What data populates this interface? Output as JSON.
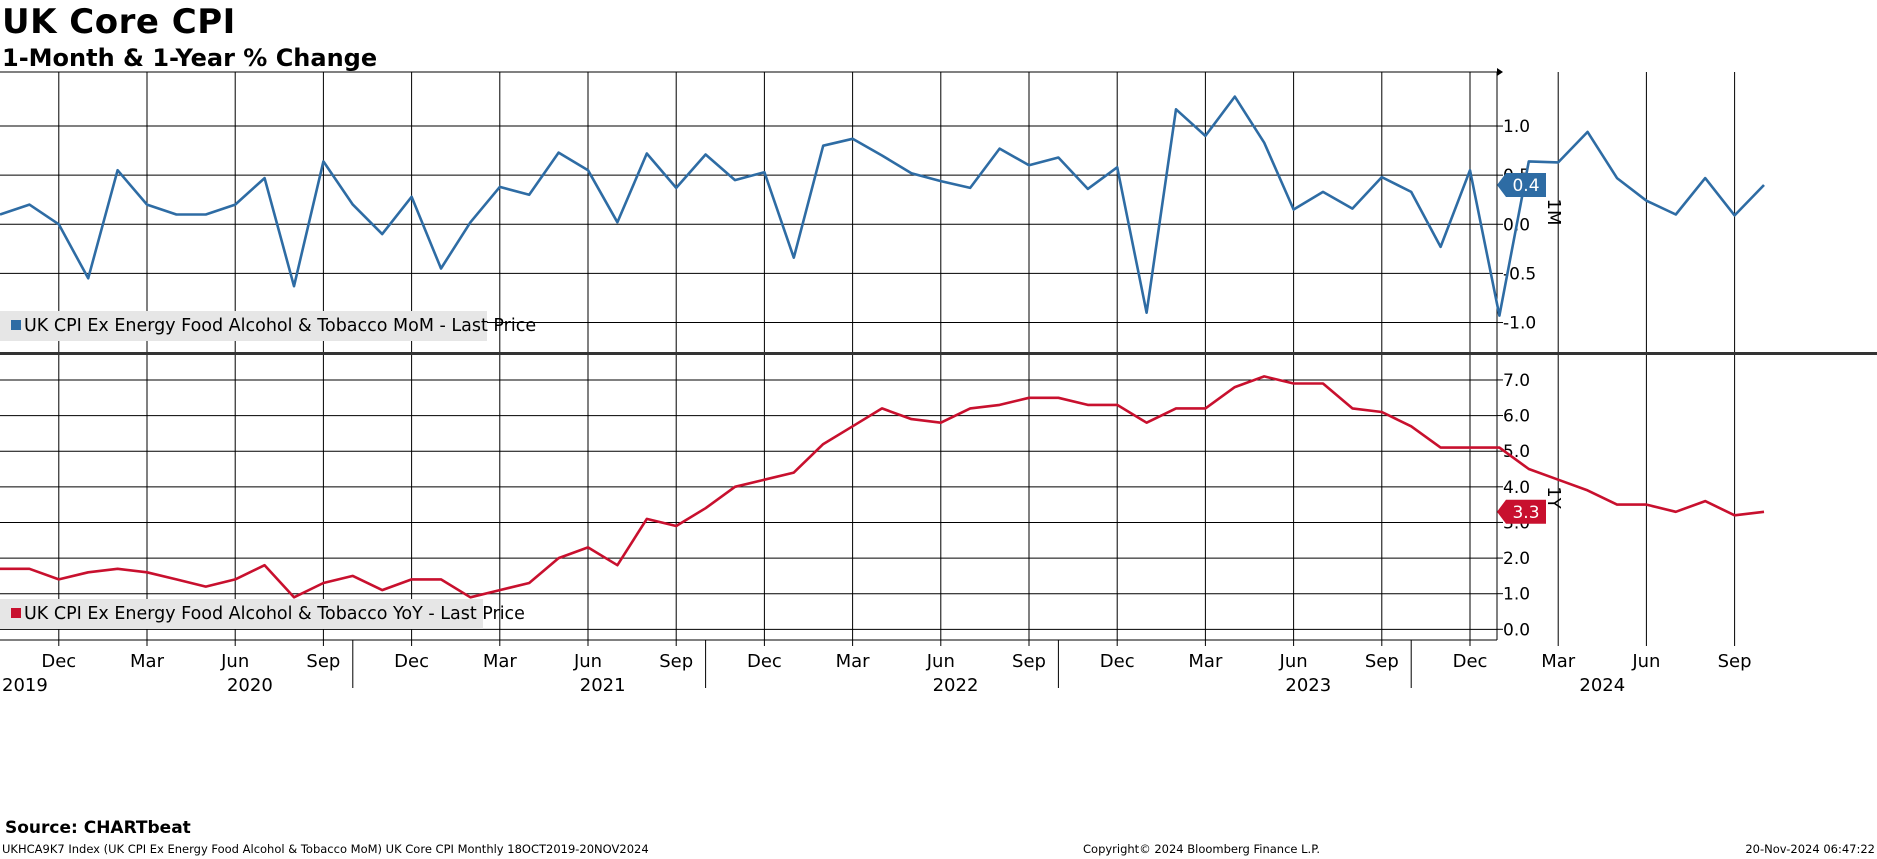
{
  "header": {
    "title": "UK Core CPI",
    "subtitle": "1-Month & 1-Year % Change"
  },
  "footer": {
    "source": "Source: CHARTbeat",
    "ticker_info": "UKHCA9K7 Index (UK CPI Ex Energy Food Alcohol & Tobacco MoM) UK Core CPI  Monthly 18OCT2019-20NOV2024",
    "copyright": "Copyright© 2024 Bloomberg Finance L.P.",
    "timestamp": "20-Nov-2024 06:47:22"
  },
  "colors": {
    "mom": "#2e6ca4",
    "yoy": "#c8102e",
    "grid": "#000000",
    "legend_bg": "#e6e6e6"
  },
  "x_axis": {
    "month_labels": [
      "Dec",
      "Mar",
      "Jun",
      "Sep",
      "Dec",
      "Mar",
      "Jun",
      "Sep",
      "Dec",
      "Mar",
      "Jun",
      "Sep",
      "Dec",
      "Mar",
      "Jun",
      "Sep",
      "Dec",
      "Mar",
      "Jun",
      "Sep"
    ],
    "year_labels": [
      "2019",
      "2020",
      "2021",
      "2022",
      "2023",
      "2024"
    ]
  },
  "chart_data": [
    {
      "type": "line",
      "panel": "top",
      "axis_name": "1M",
      "yticks": [
        "1.0",
        "0.5",
        "0.0",
        "-0.5",
        "-1.0"
      ],
      "ylim": [
        -1.3,
        1.55
      ],
      "last_value_label": "0.4",
      "series": [
        {
          "name": "UK CPI Ex Energy Food Alcohol & Tobacco MoM - Last Price",
          "x": [
            "2019-10",
            "2019-11",
            "2019-12",
            "2020-01",
            "2020-02",
            "2020-03",
            "2020-04",
            "2020-05",
            "2020-06",
            "2020-07",
            "2020-08",
            "2020-09",
            "2020-10",
            "2020-11",
            "2020-12",
            "2021-01",
            "2021-02",
            "2021-03",
            "2021-04",
            "2021-05",
            "2021-06",
            "2021-07",
            "2021-08",
            "2021-09",
            "2021-10",
            "2021-11",
            "2021-12",
            "2022-01",
            "2022-02",
            "2022-03",
            "2022-04",
            "2022-05",
            "2022-06",
            "2022-07",
            "2022-08",
            "2022-09",
            "2022-10",
            "2022-11",
            "2022-12",
            "2023-01",
            "2023-02",
            "2023-03",
            "2023-04",
            "2023-05",
            "2023-06",
            "2023-07",
            "2023-08",
            "2023-09",
            "2023-10",
            "2023-11",
            "2023-12",
            "2024-01",
            "2024-02",
            "2024-03",
            "2024-04",
            "2024-05",
            "2024-06",
            "2024-07",
            "2024-08",
            "2024-09",
            "2024-10"
          ],
          "values": [
            0.1,
            0.2,
            0.0,
            -0.55,
            0.55,
            0.2,
            0.1,
            0.1,
            0.2,
            0.47,
            -0.63,
            0.64,
            0.2,
            -0.1,
            0.28,
            -0.45,
            0.02,
            0.38,
            0.3,
            0.73,
            0.55,
            0.02,
            0.72,
            0.37,
            0.71,
            0.45,
            0.53,
            -0.34,
            0.8,
            0.87,
            0.7,
            0.52,
            0.44,
            0.37,
            0.77,
            0.6,
            0.68,
            0.36,
            0.58,
            -0.9,
            1.17,
            0.9,
            1.3,
            0.83,
            0.15,
            0.33,
            0.16,
            0.48,
            0.33,
            -0.23,
            0.55,
            -0.93,
            0.64,
            0.63,
            0.94,
            0.47,
            0.24,
            0.1,
            0.47,
            0.09,
            0.4
          ]
        }
      ]
    },
    {
      "type": "line",
      "panel": "bottom",
      "axis_name": "1Y",
      "yticks": [
        "7.0",
        "6.0",
        "5.0",
        "4.0",
        "3.0",
        "2.0",
        "1.0",
        "0.0"
      ],
      "ylim": [
        -0.3,
        7.7
      ],
      "last_value_label": "3.3",
      "series": [
        {
          "name": "UK CPI Ex Energy Food Alcohol & Tobacco YoY - Last Price",
          "x": [
            "2019-10",
            "2019-11",
            "2019-12",
            "2020-01",
            "2020-02",
            "2020-03",
            "2020-04",
            "2020-05",
            "2020-06",
            "2020-07",
            "2020-08",
            "2020-09",
            "2020-10",
            "2020-11",
            "2020-12",
            "2021-01",
            "2021-02",
            "2021-03",
            "2021-04",
            "2021-05",
            "2021-06",
            "2021-07",
            "2021-08",
            "2021-09",
            "2021-10",
            "2021-11",
            "2021-12",
            "2022-01",
            "2022-02",
            "2022-03",
            "2022-04",
            "2022-05",
            "2022-06",
            "2022-07",
            "2022-08",
            "2022-09",
            "2022-10",
            "2022-11",
            "2022-12",
            "2023-01",
            "2023-02",
            "2023-03",
            "2023-04",
            "2023-05",
            "2023-06",
            "2023-07",
            "2023-08",
            "2023-09",
            "2023-10",
            "2023-11",
            "2023-12",
            "2024-01",
            "2024-02",
            "2024-03",
            "2024-04",
            "2024-05",
            "2024-06",
            "2024-07",
            "2024-08",
            "2024-09",
            "2024-10"
          ],
          "values": [
            1.7,
            1.7,
            1.4,
            1.6,
            1.7,
            1.6,
            1.4,
            1.2,
            1.4,
            1.8,
            0.9,
            1.3,
            1.5,
            1.1,
            1.4,
            1.4,
            0.9,
            1.1,
            1.3,
            2.0,
            2.3,
            1.8,
            3.1,
            2.9,
            3.4,
            4.0,
            4.2,
            4.4,
            5.2,
            5.7,
            6.2,
            5.9,
            5.8,
            6.2,
            6.3,
            6.5,
            6.5,
            6.3,
            6.3,
            5.8,
            6.2,
            6.2,
            6.8,
            7.1,
            6.9,
            6.9,
            6.2,
            6.1,
            5.7,
            5.1,
            5.1,
            5.1,
            4.5,
            4.2,
            3.9,
            3.5,
            3.5,
            3.3,
            3.6,
            3.2,
            3.3
          ]
        }
      ]
    }
  ]
}
